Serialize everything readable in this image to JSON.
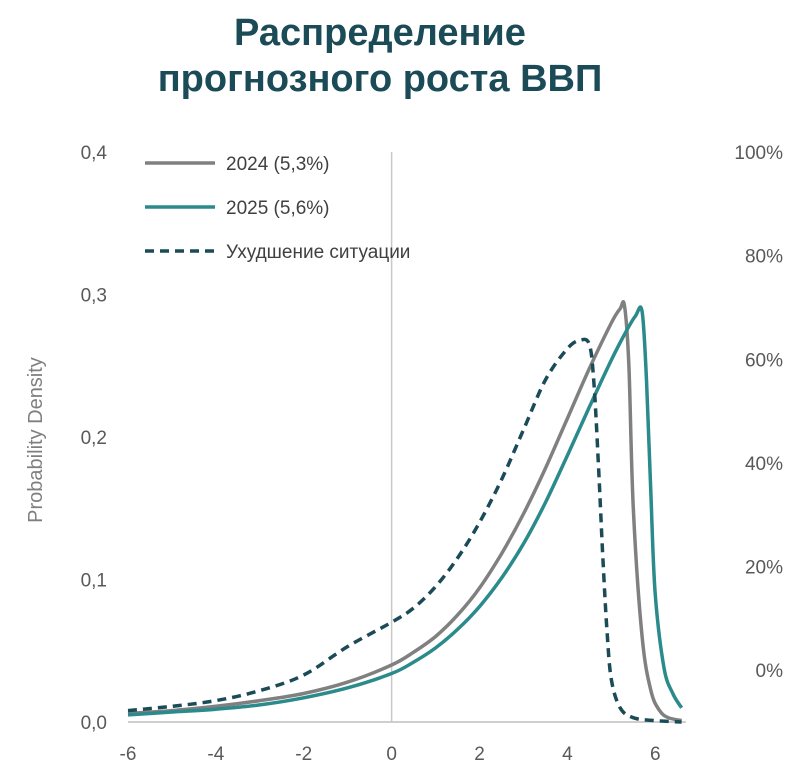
{
  "chart_data": {
    "type": "line",
    "title_lines": [
      "Распределение",
      "прогнозного роста ВВП"
    ],
    "ylabel": "Probability Density",
    "xlabel": "",
    "xlim": [
      -6,
      6.7
    ],
    "ylim": [
      0,
      0.4
    ],
    "x_ticks": [
      "-6",
      "-4",
      "-2",
      "0",
      "2",
      "4",
      "6"
    ],
    "y_ticks": [
      "0,0",
      "0,1",
      "0,2",
      "0,3",
      "0,4"
    ],
    "y2_ticks": [
      "0%",
      "20%",
      "40%",
      "60%",
      "80%",
      "100%"
    ],
    "y2lim": [
      -10,
      100
    ],
    "legend_position": "top-left",
    "series": [
      {
        "name": "2024 (5,3%)",
        "color": "#808080",
        "style": "solid",
        "x": [
          -6,
          -5,
          -4,
          -3,
          -2,
          -1,
          0,
          0.5,
          1,
          1.5,
          2,
          2.5,
          3,
          3.5,
          4,
          4.5,
          5,
          5.2,
          5.3,
          5.4,
          5.5,
          5.7,
          5.9,
          6.1,
          6.3,
          6.6
        ],
        "y": [
          0.006,
          0.008,
          0.011,
          0.015,
          0.02,
          0.028,
          0.04,
          0.049,
          0.06,
          0.075,
          0.094,
          0.118,
          0.146,
          0.178,
          0.213,
          0.248,
          0.28,
          0.29,
          0.292,
          0.25,
          0.15,
          0.06,
          0.022,
          0.008,
          0.003,
          0.001
        ]
      },
      {
        "name": "2025 (5,6%)",
        "color": "#2a8a8c",
        "style": "solid",
        "x": [
          -6,
          -5,
          -4,
          -3,
          -2,
          -1,
          0,
          0.5,
          1,
          1.5,
          2,
          2.5,
          3,
          3.5,
          4,
          4.5,
          5,
          5.3,
          5.55,
          5.7,
          5.8,
          5.9,
          6,
          6.2,
          6.4,
          6.6
        ],
        "y": [
          0.005,
          0.007,
          0.009,
          0.012,
          0.017,
          0.024,
          0.034,
          0.042,
          0.052,
          0.065,
          0.081,
          0.101,
          0.125,
          0.154,
          0.187,
          0.221,
          0.254,
          0.272,
          0.285,
          0.288,
          0.24,
          0.16,
          0.09,
          0.038,
          0.02,
          0.01
        ]
      },
      {
        "name": "Ухудшение ситуации",
        "color": "#1b4b57",
        "style": "dashed",
        "x": [
          -6,
          -5,
          -4,
          -3,
          -2,
          -1,
          0,
          0.5,
          1,
          1.5,
          2,
          2.5,
          3,
          3.5,
          4,
          4.3,
          4.5,
          4.6,
          4.7,
          4.8,
          4.9,
          5,
          5.2,
          5.5,
          6,
          6.6
        ],
        "y": [
          0.008,
          0.011,
          0.015,
          0.022,
          0.033,
          0.053,
          0.07,
          0.08,
          0.095,
          0.115,
          0.14,
          0.17,
          0.205,
          0.24,
          0.262,
          0.268,
          0.265,
          0.24,
          0.185,
          0.12,
          0.065,
          0.03,
          0.01,
          0.003,
          0.001,
          0
        ]
      }
    ]
  }
}
